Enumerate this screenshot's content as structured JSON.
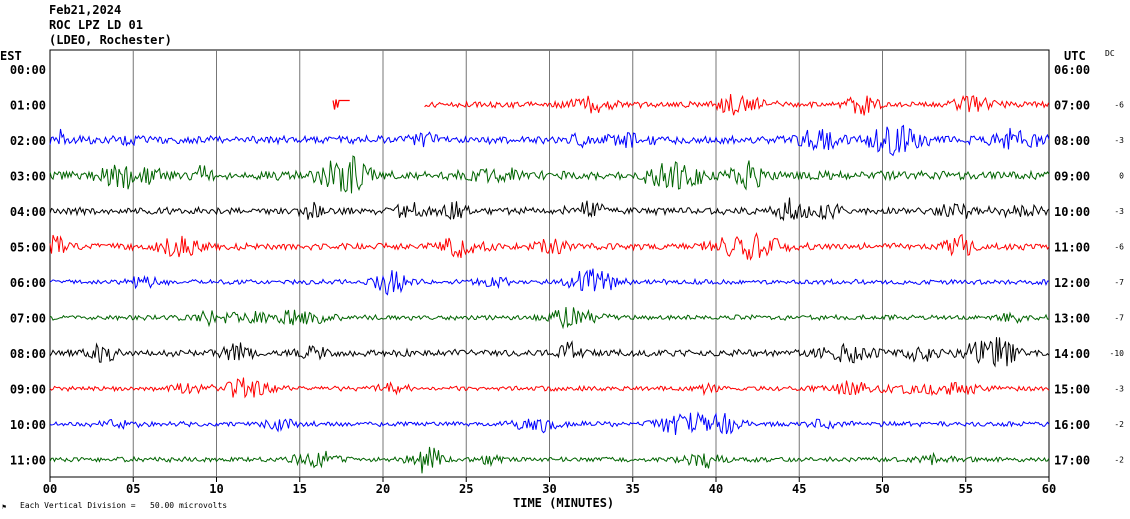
{
  "header": {
    "date": "Feb21,2024",
    "station": "ROC LPZ LD 01",
    "network": "(LDEO, Rochester)"
  },
  "left_axis_label": "EST",
  "right_axis_label": "UTC",
  "dc_label": "DC",
  "x_axis_title": "TIME (MINUTES)",
  "footer_note": "Each Vertical Division =   50.00 microvolts",
  "chart_data": {
    "type": "line",
    "subtype": "helicorder",
    "xlim": [
      0,
      60
    ],
    "x_ticks": [
      "00",
      "05",
      "10",
      "15",
      "20",
      "25",
      "30",
      "35",
      "40",
      "45",
      "50",
      "55",
      "60"
    ],
    "series": [
      {
        "est": "00:00",
        "utc": "06:00",
        "dc": "",
        "color": "#ff0000",
        "amplitude": 0,
        "start_min": 60
      },
      {
        "est": "01:00",
        "utc": "07:00",
        "dc": "-6",
        "color": "#ff0000",
        "amplitude": 6,
        "start_min": 22.5,
        "fragment_min": [
          17,
          18
        ]
      },
      {
        "est": "02:00",
        "utc": "08:00",
        "dc": "-3",
        "color": "#0000ff",
        "amplitude": 8,
        "start_min": 0
      },
      {
        "est": "03:00",
        "utc": "09:00",
        "dc": "0",
        "color": "#006400",
        "amplitude": 9,
        "start_min": 0
      },
      {
        "est": "04:00",
        "utc": "10:00",
        "dc": "-3",
        "color": "#000000",
        "amplitude": 7,
        "start_min": 0
      },
      {
        "est": "05:00",
        "utc": "11:00",
        "dc": "-6",
        "color": "#ff0000",
        "amplitude": 7,
        "start_min": 0
      },
      {
        "est": "06:00",
        "utc": "12:00",
        "dc": "-7",
        "color": "#0000ff",
        "amplitude": 5,
        "start_min": 0
      },
      {
        "est": "07:00",
        "utc": "13:00",
        "dc": "-7",
        "color": "#006400",
        "amplitude": 5,
        "start_min": 0
      },
      {
        "est": "08:00",
        "utc": "14:00",
        "dc": "-10",
        "color": "#000000",
        "amplitude": 7,
        "start_min": 0
      },
      {
        "est": "09:00",
        "utc": "15:00",
        "dc": "-3",
        "color": "#ff0000",
        "amplitude": 5,
        "start_min": 0
      },
      {
        "est": "10:00",
        "utc": "16:00",
        "dc": "-2",
        "color": "#0000ff",
        "amplitude": 5,
        "start_min": 0
      },
      {
        "est": "11:00",
        "utc": "17:00",
        "dc": "-2",
        "color": "#006400",
        "amplitude": 5,
        "start_min": 0
      }
    ]
  }
}
